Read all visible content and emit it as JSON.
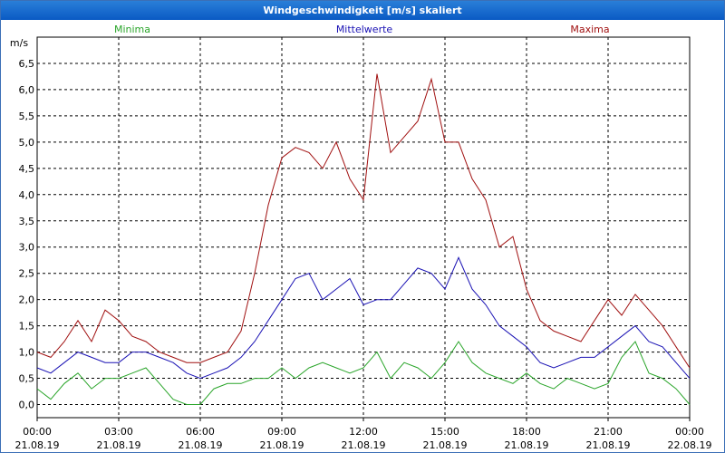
{
  "window": {
    "title": "Windgeschwindigkeit [m/s] skaliert"
  },
  "colors": {
    "minima": "#2aa52a",
    "mittelwerte": "#1a12b4",
    "maxima": "#a01010",
    "grid": "#000000"
  },
  "chart_data": {
    "type": "line",
    "title": "Windgeschwindigkeit [m/s] skaliert",
    "ylabel": "m/s",
    "xlabel": "",
    "ylim": [
      -0.25,
      7.0
    ],
    "xlim": [
      0,
      24
    ],
    "grid": true,
    "yticks": [
      "0,0",
      "0,5",
      "1,0",
      "1,5",
      "2,0",
      "2,5",
      "3,0",
      "3,5",
      "4,0",
      "4,5",
      "5,0",
      "5,5",
      "6,0",
      "6,5"
    ],
    "ytick_values": [
      0,
      0.5,
      1,
      1.5,
      2,
      2.5,
      3,
      3.5,
      4,
      4.5,
      5,
      5.5,
      6,
      6.5
    ],
    "xticks": [
      {
        "time": "00:00",
        "date": "21.08.19",
        "h": 0
      },
      {
        "time": "03:00",
        "date": "21.08.19",
        "h": 3
      },
      {
        "time": "06:00",
        "date": "21.08.19",
        "h": 6
      },
      {
        "time": "09:00",
        "date": "21.08.19",
        "h": 9
      },
      {
        "time": "12:00",
        "date": "21.08.19",
        "h": 12
      },
      {
        "time": "15:00",
        "date": "21.08.19",
        "h": 15
      },
      {
        "time": "18:00",
        "date": "21.08.19",
        "h": 18
      },
      {
        "time": "21:00",
        "date": "21.08.19",
        "h": 21
      },
      {
        "time": "00:00",
        "date": "22.08.19",
        "h": 24
      }
    ],
    "legend": [
      "Minima",
      "Mittelwerte",
      "Maxima"
    ],
    "x_hours": [
      0,
      0.5,
      1,
      1.5,
      2,
      2.5,
      3,
      3.5,
      4,
      4.5,
      5,
      5.5,
      6,
      6.5,
      7,
      7.5,
      8,
      8.5,
      9,
      9.5,
      10,
      10.5,
      11,
      11.5,
      12,
      12.5,
      13,
      13.5,
      14,
      14.5,
      15,
      15.5,
      16,
      16.5,
      17,
      17.5,
      18,
      18.5,
      19,
      19.5,
      20,
      20.5,
      21,
      21.5,
      22,
      22.5,
      23,
      23.5,
      24
    ],
    "series": [
      {
        "name": "Minima",
        "values": [
          0.3,
          0.1,
          0.4,
          0.6,
          0.3,
          0.5,
          0.5,
          0.6,
          0.7,
          0.4,
          0.1,
          0.0,
          0.0,
          0.3,
          0.4,
          0.4,
          0.5,
          0.5,
          0.7,
          0.5,
          0.7,
          0.8,
          0.7,
          0.6,
          0.7,
          1.0,
          0.5,
          0.8,
          0.7,
          0.5,
          0.8,
          1.2,
          0.8,
          0.6,
          0.5,
          0.4,
          0.6,
          0.4,
          0.3,
          0.5,
          0.4,
          0.3,
          0.4,
          0.9,
          1.2,
          0.6,
          0.5,
          0.3,
          0.0
        ]
      },
      {
        "name": "Mittelwerte",
        "values": [
          0.7,
          0.6,
          0.8,
          1.0,
          0.9,
          0.8,
          0.8,
          1.0,
          1.0,
          0.9,
          0.8,
          0.6,
          0.5,
          0.6,
          0.7,
          0.9,
          1.2,
          1.6,
          2.0,
          2.4,
          2.5,
          2.0,
          2.2,
          2.4,
          1.9,
          2.0,
          2.0,
          2.3,
          2.6,
          2.5,
          2.2,
          2.8,
          2.2,
          1.9,
          1.5,
          1.3,
          1.1,
          0.8,
          0.7,
          0.8,
          0.9,
          0.9,
          1.1,
          1.3,
          1.5,
          1.2,
          1.1,
          0.8,
          0.5
        ]
      },
      {
        "name": "Maxima",
        "values": [
          1.0,
          0.9,
          1.2,
          1.6,
          1.2,
          1.8,
          1.6,
          1.3,
          1.2,
          1.0,
          0.9,
          0.8,
          0.8,
          0.9,
          1.0,
          1.4,
          2.5,
          3.8,
          4.7,
          4.9,
          4.8,
          4.5,
          5.0,
          4.3,
          3.9,
          6.3,
          4.8,
          5.1,
          5.4,
          6.2,
          5.0,
          5.0,
          4.3,
          3.9,
          3.0,
          3.2,
          2.2,
          1.6,
          1.4,
          1.3,
          1.2,
          1.6,
          2.0,
          1.7,
          2.1,
          1.8,
          1.5,
          1.1,
          0.7
        ]
      }
    ]
  }
}
